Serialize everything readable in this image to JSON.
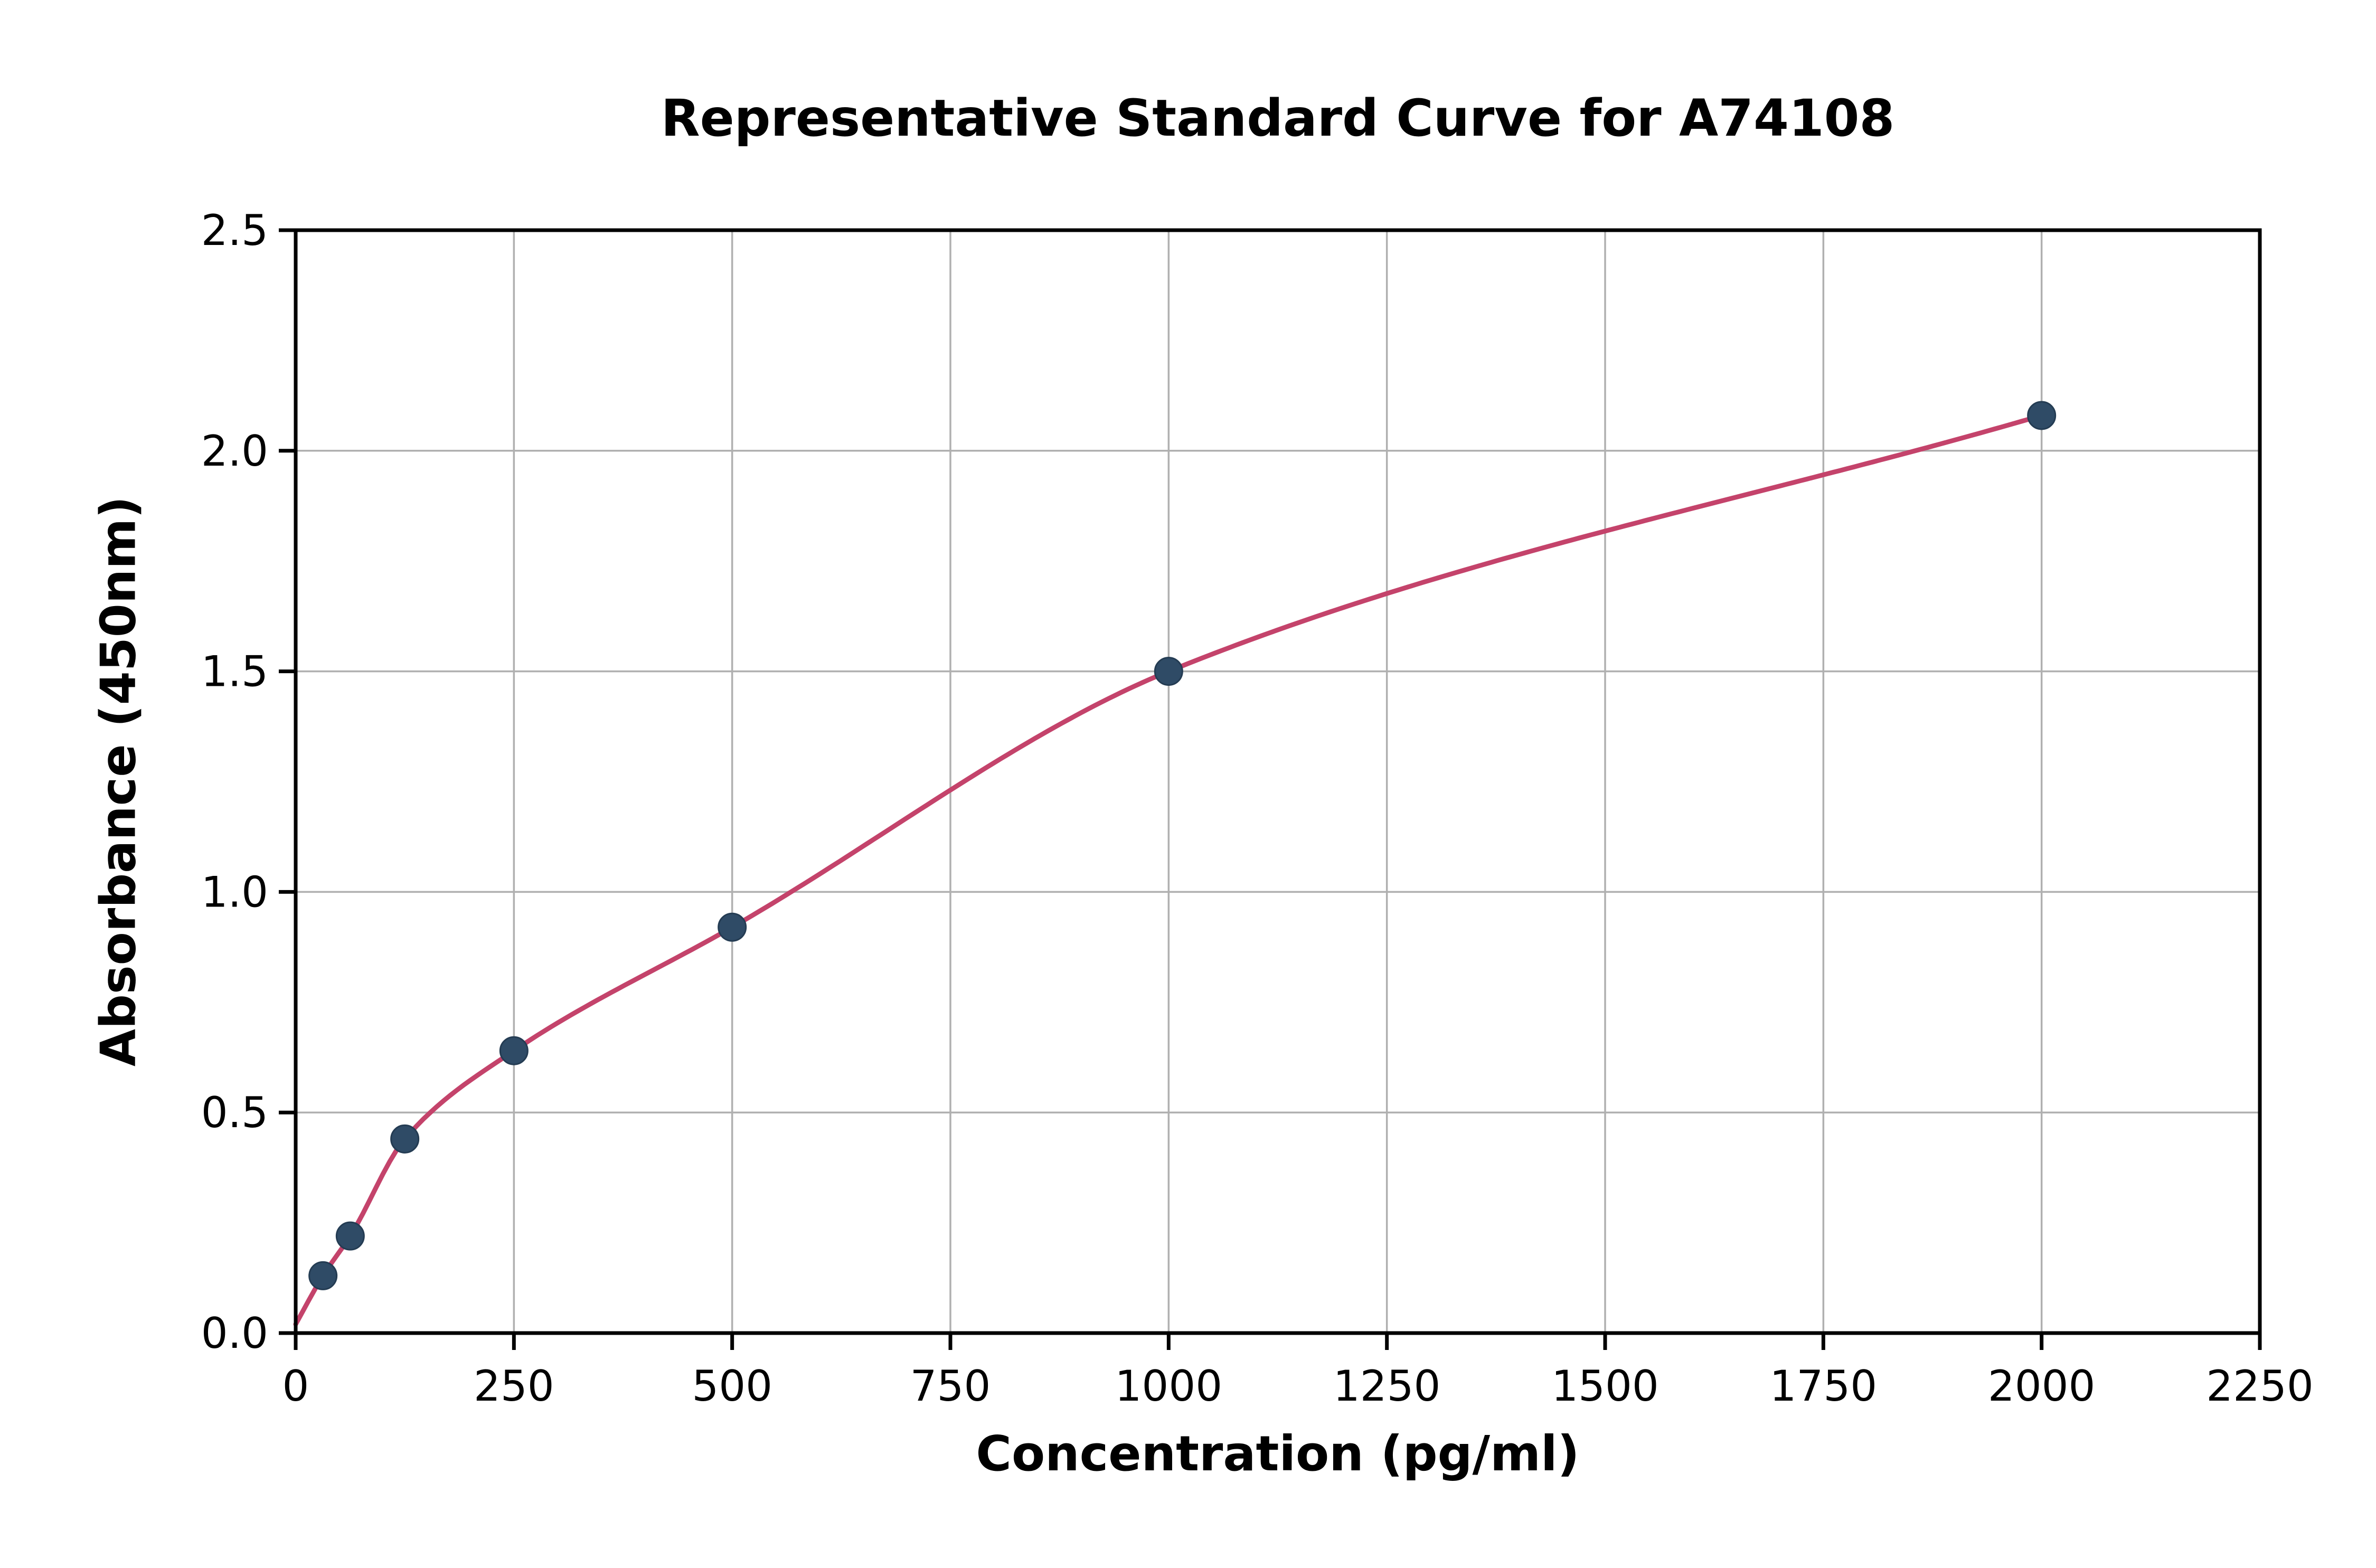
{
  "chart_data": {
    "type": "scatter",
    "title": "Representative Standard Curve for A74108",
    "xlabel": "Concentration (pg/ml)",
    "ylabel": "Absorbance (450nm)",
    "xlim": [
      0,
      2250
    ],
    "ylim": [
      0,
      2.5
    ],
    "grid": true,
    "legend": "none",
    "x_ticks": [
      0,
      250,
      500,
      750,
      1000,
      1250,
      1500,
      1750,
      2000,
      2250
    ],
    "x_tick_labels": [
      "0",
      "250",
      "500",
      "750",
      "1000",
      "1250",
      "1500",
      "1750",
      "2000",
      "2250"
    ],
    "y_ticks": [
      0.0,
      0.5,
      1.0,
      1.5,
      2.0,
      2.5
    ],
    "y_tick_labels": [
      "0.0",
      "0.5",
      "1.0",
      "1.5",
      "2.0",
      "2.5"
    ],
    "points": [
      {
        "x": 31.25,
        "y": 0.13
      },
      {
        "x": 62.5,
        "y": 0.22
      },
      {
        "x": 125,
        "y": 0.44
      },
      {
        "x": 250,
        "y": 0.64
      },
      {
        "x": 500,
        "y": 0.92
      },
      {
        "x": 1000,
        "y": 1.5
      },
      {
        "x": 2000,
        "y": 2.08
      }
    ],
    "curve_start": {
      "x": 0,
      "y": 0.02
    },
    "colors": {
      "point": "#2f4b66",
      "curve": "#c4436b",
      "grid": "#b0b0b0",
      "axis": "#000000",
      "background": "#ffffff"
    }
  }
}
